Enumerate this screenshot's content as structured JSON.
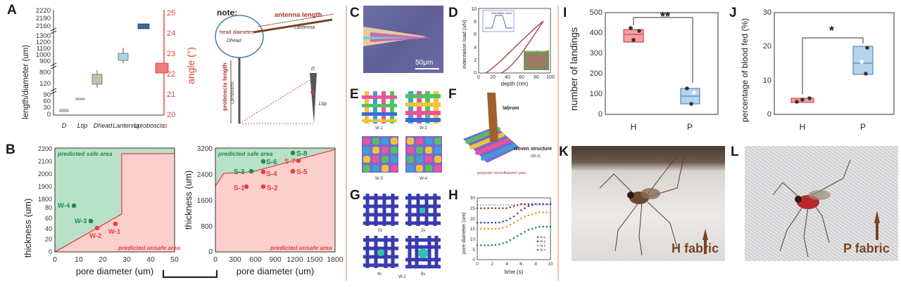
{
  "panels": {
    "A": "A",
    "B": "B",
    "C": "C",
    "D": "D",
    "E": "E",
    "F": "F",
    "G": "G",
    "H": "H",
    "I": "I",
    "J": "J",
    "K": "K",
    "L": "L"
  },
  "colors": {
    "red": "#e83f3f",
    "green": "#1f8a4c",
    "safe_fill": "#b8e2c8",
    "unsafe_fill": "#fbd0cc",
    "blue_box": "#3a78b5",
    "divider": "#e4c7b6",
    "arrow_brown": "#7a4424"
  },
  "panel_A": {
    "ylabel_left": "length/diameter (um)",
    "ylabel_right": "angle (°)",
    "yticks_left": [
      "2220",
      "2190",
      "2160",
      "1300",
      "1200",
      "1100",
      "1000",
      "900",
      "800",
      "120",
      "90",
      "60",
      "30",
      "0"
    ],
    "yticks_right": [
      "25",
      "24",
      "23",
      "22",
      "21",
      "20"
    ],
    "xticks": [
      "D",
      "Ltip",
      "Dhead",
      "Lantenna",
      "Lproboscis",
      "α"
    ],
    "note_title": "note:",
    "note_labels": [
      "antenna length",
      "Lantenna",
      "head diameter",
      "Dhead",
      "proboscis length",
      "Lproboscis",
      "D",
      "α",
      "Ltip"
    ]
  },
  "chart_data": [
    {
      "type": "box",
      "panel": "A",
      "categories": [
        "D",
        "Ltip",
        "Dhead",
        "Lantenna",
        "Lproboscis",
        "α"
      ],
      "values": [
        28,
        78,
        830,
        1250,
        2200,
        22.2
      ],
      "axis": [
        "left",
        "left",
        "left",
        "left",
        "left",
        "right"
      ],
      "ylabel": "length/diameter (um)",
      "y2label": "angle (°)",
      "y2lim": [
        20,
        25
      ]
    },
    {
      "type": "area",
      "panel": "B-left",
      "xlabel": "pore diameter (um)",
      "ylabel": "thickness (um)",
      "xticks": [
        "0",
        "10",
        "20",
        "30",
        "40",
        "50"
      ],
      "yticks": [
        "2200",
        "2100",
        "2000",
        "1900",
        "1800",
        "80",
        "60",
        "40",
        "20",
        "0"
      ],
      "region_labels": [
        "predicted safe area",
        "predicted unsafe area"
      ],
      "points": [
        {
          "name": "W-4",
          "x": 8,
          "y": 80,
          "safe": true
        },
        {
          "name": "W-3",
          "x": 17,
          "y": 55,
          "safe": true
        },
        {
          "name": "W-2",
          "x": 20,
          "y": 42,
          "safe": false
        },
        {
          "name": "W-1",
          "x": 26,
          "y": 50,
          "safe": false
        }
      ]
    },
    {
      "type": "area",
      "panel": "B-right",
      "xlabel": "pore diameter (um)",
      "ylabel": "thickness (um)",
      "xticks": [
        "0",
        "300",
        "600",
        "900",
        "1200",
        "1500",
        "1800"
      ],
      "yticks": [
        "3200",
        "2400",
        "1600",
        "800",
        "0"
      ],
      "region_labels": [
        "predicted safe area",
        "predicted unsafe area"
      ],
      "points": [
        {
          "name": "S-8",
          "x": 1180,
          "y": 3050,
          "safe": true
        },
        {
          "name": "S-6",
          "x": 760,
          "y": 2780,
          "safe": true
        },
        {
          "name": "S-3",
          "x": 560,
          "y": 2450,
          "safe": true
        },
        {
          "name": "S-7",
          "x": 1240,
          "y": 2780,
          "safe": false
        },
        {
          "name": "S-4",
          "x": 760,
          "y": 2430,
          "safe": false
        },
        {
          "name": "S-5",
          "x": 1220,
          "y": 2430,
          "safe": false
        },
        {
          "name": "S-1",
          "x": 470,
          "y": 2000,
          "safe": false
        },
        {
          "name": "S-2",
          "x": 760,
          "y": 2000,
          "safe": false
        }
      ]
    },
    {
      "type": "line",
      "panel": "D",
      "xlabel": "depth (nm)",
      "ylabel": "indentation load (uN)",
      "xticks": [
        "0",
        "20",
        "40",
        "60",
        "80",
        "100"
      ],
      "yticks": [
        "0",
        "2",
        "4",
        "6",
        "8",
        "10"
      ],
      "inset_labels": [
        "indentation force",
        "indentation location"
      ]
    },
    {
      "type": "scatter",
      "panel": "H",
      "xlabel": "time (s)",
      "ylabel": "pore diameter (um)",
      "xticks": [
        "0",
        "2",
        "4",
        "6",
        "8",
        "10"
      ],
      "yticks": [
        "0",
        "5",
        "10",
        "15",
        "20",
        "25",
        "30"
      ],
      "x": [
        0,
        0.5,
        1,
        1.5,
        2,
        2.5,
        3,
        3.5,
        4,
        4.5,
        5,
        5.5,
        6,
        6.5,
        7,
        7.5,
        8,
        8.5,
        9,
        9.5,
        10
      ],
      "series": [
        {
          "name": "W-1",
          "values": [
            25,
            25,
            25,
            25,
            25,
            25,
            25,
            25,
            25,
            25.5,
            26,
            26.5,
            27,
            27,
            27,
            27,
            27,
            27,
            27,
            27,
            27
          ]
        },
        {
          "name": "W-2",
          "values": [
            18,
            18,
            18,
            18,
            18,
            18,
            18,
            18.5,
            19,
            20,
            21,
            22.5,
            24,
            25,
            26,
            26.5,
            27,
            27,
            27,
            27,
            27
          ]
        },
        {
          "name": "W-3",
          "values": [
            15,
            15,
            15,
            15,
            15,
            15,
            15,
            15.5,
            16,
            17,
            18,
            19,
            20,
            21,
            21.5,
            22,
            22.5,
            23,
            23,
            23,
            23
          ]
        },
        {
          "name": "W-4",
          "values": [
            7,
            7,
            7,
            7,
            7,
            7.2,
            7.5,
            8,
            8.5,
            9.5,
            10.5,
            11.5,
            12.5,
            13.5,
            14.5,
            15,
            15.5,
            16,
            16,
            16,
            16
          ]
        }
      ]
    },
    {
      "type": "box",
      "panel": "I",
      "ylabel": "number of landings",
      "categories": [
        "H",
        "P"
      ],
      "ylim": [
        0,
        500
      ],
      "yticks": [
        "0",
        "100",
        "200",
        "300",
        "400",
        "500"
      ],
      "series": [
        {
          "name": "H",
          "values": [
            430,
            415,
            375
          ],
          "box": [
            365,
            400,
            425
          ]
        },
        {
          "name": "P",
          "values": [
            130,
            100,
            60
          ],
          "box": [
            60,
            100,
            135
          ]
        }
      ],
      "significance": "**"
    },
    {
      "type": "box",
      "panel": "J",
      "ylabel": "percentage of blood fed (%)",
      "categories": [
        "H",
        "P"
      ],
      "ylim": [
        0,
        30
      ],
      "yticks": [
        "0",
        "10",
        "20",
        "30"
      ],
      "series": [
        {
          "name": "H",
          "values": [
            5,
            4.5,
            4
          ],
          "box": [
            3.8,
            4.3,
            5
          ]
        },
        {
          "name": "P",
          "values": [
            20,
            15,
            12
          ],
          "box": [
            12,
            15,
            20
          ]
        }
      ],
      "significance": "*"
    }
  ],
  "panel_C": {
    "scale_bar": "50μm"
  },
  "panel_E": {
    "labels": [
      "W-1",
      "W-2",
      "W-3",
      "W-4"
    ]
  },
  "panel_F": {
    "labels": [
      "labrum",
      "woven structure",
      "(W-2)",
      "polyester monofilament yarn"
    ]
  },
  "panel_G": {
    "labels": [
      "0s",
      "2s",
      "4s",
      "W-2",
      "8s"
    ]
  },
  "panel_K": {
    "caption": "H fabric"
  },
  "panel_L": {
    "caption": "P fabric"
  }
}
